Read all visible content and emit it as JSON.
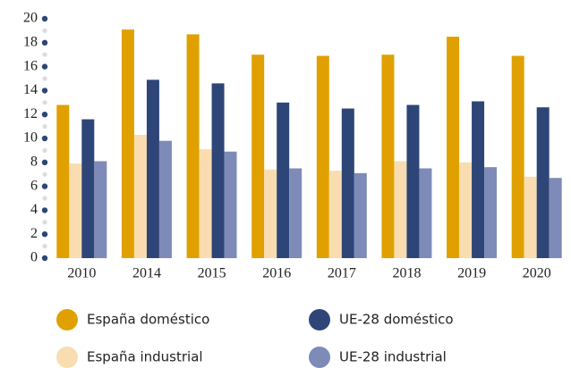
{
  "chart_data": {
    "type": "bar",
    "categories": [
      "2010",
      "2014",
      "2015",
      "2016",
      "2017",
      "2018",
      "2019",
      "2020"
    ],
    "series": [
      {
        "name": "España doméstico",
        "color": "#e0a100",
        "values": [
          12.8,
          19.1,
          18.7,
          17.0,
          16.9,
          17.0,
          18.5,
          16.9
        ]
      },
      {
        "name": "España industrial",
        "color": "#f9ddb0",
        "values": [
          7.9,
          10.3,
          9.1,
          7.4,
          7.3,
          8.1,
          8.0,
          6.8
        ]
      },
      {
        "name": "UE-28 doméstico",
        "color": "#2e4577",
        "values": [
          11.6,
          14.9,
          14.6,
          13.0,
          12.5,
          12.8,
          13.1,
          12.6
        ]
      },
      {
        "name": "UE-28 industrial",
        "color": "#7e8bb8",
        "values": [
          8.1,
          9.8,
          8.9,
          7.5,
          7.1,
          7.5,
          7.6,
          6.7
        ]
      }
    ],
    "ylim": [
      0,
      20
    ],
    "yticks": [
      0,
      2,
      4,
      6,
      8,
      10,
      12,
      14,
      16,
      18,
      20
    ],
    "grid": false
  }
}
